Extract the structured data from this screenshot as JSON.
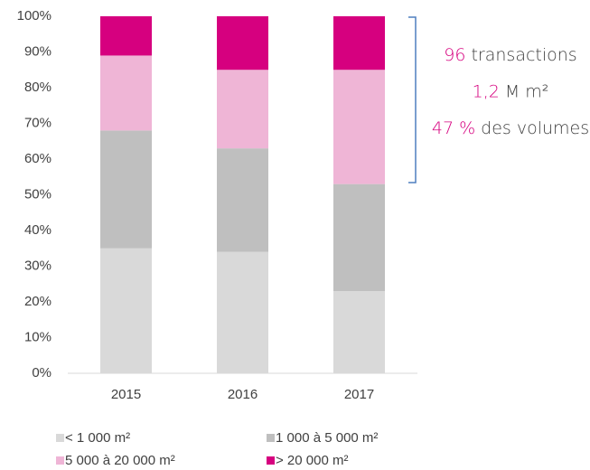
{
  "chart_data": {
    "type": "stacked_bar_100",
    "categories": [
      "2015",
      "2016",
      "2017"
    ],
    "series": [
      {
        "name": "< 1 000 m²",
        "color": "#d9d9d9",
        "values": [
          35,
          34,
          23
        ]
      },
      {
        "name": "1 000 à 5 000 m²",
        "color": "#bfbfbf",
        "values": [
          33,
          29,
          30
        ]
      },
      {
        "name": "5 000 à 20 000 m²",
        "color": "#efb5d6",
        "values": [
          21,
          22,
          32
        ]
      },
      {
        "name": "> 20 000 m²",
        "color": "#d6007f",
        "values": [
          11,
          15,
          15
        ]
      }
    ],
    "ylim": [
      0,
      100
    ],
    "yticks": [
      {
        "value": 0,
        "label": "0%"
      },
      {
        "value": 10,
        "label": "10%"
      },
      {
        "value": 20,
        "label": "20%"
      },
      {
        "value": 30,
        "label": "30%"
      },
      {
        "value": 40,
        "label": "40%"
      },
      {
        "value": 50,
        "label": "50%"
      },
      {
        "value": 60,
        "label": "60%"
      },
      {
        "value": 70,
        "label": "70%"
      },
      {
        "value": 80,
        "label": "80%"
      },
      {
        "value": 90,
        "label": "90%"
      },
      {
        "value": 100,
        "label": "100%"
      }
    ],
    "grid": false,
    "legend": "bottom",
    "annotations": [
      {
        "highlight": "96",
        "text": "transactions"
      },
      {
        "highlight": "1,2",
        "text": "M m²"
      },
      {
        "highlight": "47 %",
        "text": "des volumes"
      }
    ],
    "highlight_color": "#d6007f"
  }
}
